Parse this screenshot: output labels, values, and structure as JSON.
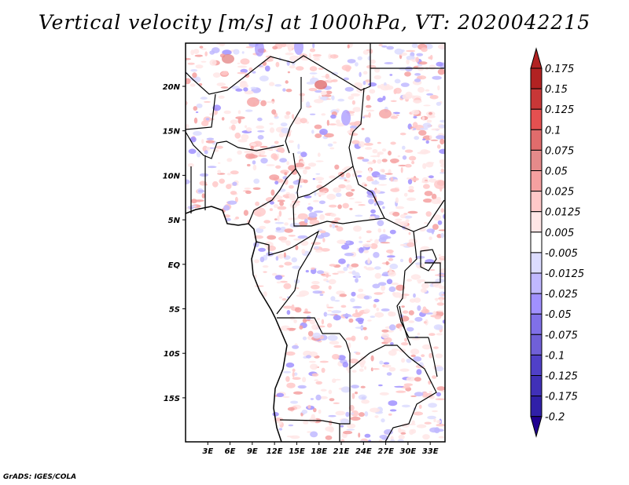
{
  "title": "Vertical velocity [m/s] at 1000hPa, VT: 2020042215",
  "credit": "GrADS: IGES/COLA",
  "map": {
    "lon_labels": [
      "3E",
      "6E",
      "9E",
      "12E",
      "15E",
      "18E",
      "21E",
      "24E",
      "27E",
      "30E",
      "33E"
    ],
    "lon_values": [
      3,
      6,
      9,
      12,
      15,
      18,
      21,
      24,
      27,
      30,
      33
    ],
    "lat_labels": [
      "20N",
      "15N",
      "10N",
      "5N",
      "EQ",
      "5S",
      "10S",
      "15S"
    ],
    "lat_values": [
      20,
      15,
      10,
      5,
      0,
      -5,
      -10,
      -15
    ]
  },
  "colorbar": {
    "labels": [
      "0.175",
      "0.15",
      "0.125",
      "0.1",
      "0.075",
      "0.05",
      "0.025",
      "0.0125",
      "0.005",
      "-0.005",
      "-0.0125",
      "-0.025",
      "-0.05",
      "-0.075",
      "-0.1",
      "-0.125",
      "-0.175",
      "-0.2"
    ],
    "colors": [
      "#b22222",
      "#c83737",
      "#e55050",
      "#e06c6c",
      "#e58a8a",
      "#f5a0a0",
      "#ffc8c8",
      "#ffe6e6",
      "#ffffff",
      "#dcdcff",
      "#c0b8ff",
      "#a090ff",
      "#8070e8",
      "#7060d8",
      "#5040c8",
      "#4030b8",
      "#3020a8",
      "#200090"
    ],
    "top_arrow_color": "#b22222",
    "bottom_arrow_color": "#200090"
  }
}
